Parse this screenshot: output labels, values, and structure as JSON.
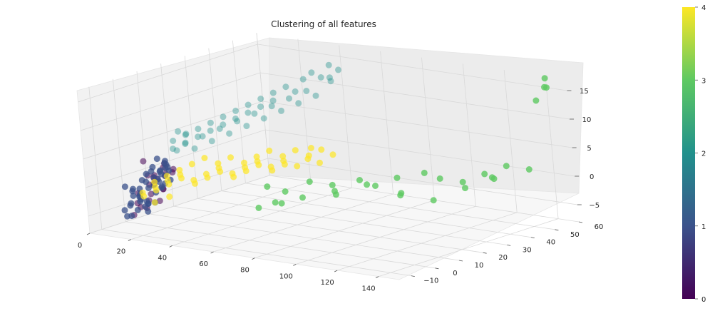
{
  "chart_data": {
    "type": "scatter",
    "projection": "3d",
    "title": "Clustering of all features",
    "xlabel": "",
    "ylabel": "",
    "zlabel": "",
    "xlim": [
      0,
      150
    ],
    "ylim": [
      -15,
      60
    ],
    "zlim": [
      -8,
      17
    ],
    "x_ticks": [
      "0",
      "20",
      "40",
      "60",
      "80",
      "100",
      "120",
      "140"
    ],
    "y_ticks": [
      "−10",
      "0",
      "10",
      "20",
      "30",
      "40",
      "50",
      "60"
    ],
    "z_ticks": [
      "−5",
      "0",
      "5",
      "10",
      "15"
    ],
    "grid": true,
    "colormap": "viridis",
    "colorbar": {
      "min": 0,
      "max": 4,
      "ticks": [
        "0",
        "1",
        "2",
        "3",
        "4"
      ]
    },
    "cluster_colors": [
      "#440154",
      "#3b528b",
      "#21918c",
      "#5ec962",
      "#fde725"
    ],
    "series": [
      {
        "cluster": 0,
        "points": [
          [
            2,
            5,
            -6
          ],
          [
            3,
            3,
            -5
          ],
          [
            4,
            8,
            -4
          ],
          [
            5,
            2,
            -3
          ],
          [
            6,
            6,
            -2
          ],
          [
            4,
            10,
            -1
          ],
          [
            8,
            4,
            0
          ],
          [
            7,
            7,
            -2
          ],
          [
            10,
            5,
            -1
          ],
          [
            12,
            3,
            0
          ],
          [
            9,
            9,
            -3
          ],
          [
            3,
            12,
            -2
          ],
          [
            11,
            8,
            1
          ],
          [
            14,
            6,
            0
          ],
          [
            6,
            13,
            -1
          ],
          [
            15,
            4,
            -2
          ],
          [
            13,
            10,
            0
          ],
          [
            2,
            2,
            -7
          ],
          [
            5,
            5,
            -6
          ],
          [
            8,
            8,
            -5
          ],
          [
            10,
            2,
            -4
          ],
          [
            7,
            12,
            1
          ],
          [
            16,
            8,
            1
          ],
          [
            4,
            6,
            2
          ]
        ]
      },
      {
        "cluster": 1,
        "points": [
          [
            0,
            0,
            -6
          ],
          [
            1,
            2,
            -5
          ],
          [
            0,
            4,
            -4
          ],
          [
            1,
            6,
            -3
          ],
          [
            2,
            8,
            -2
          ],
          [
            0,
            10,
            -1
          ],
          [
            1,
            12,
            0
          ],
          [
            2,
            14,
            -1
          ],
          [
            0,
            1,
            -2
          ],
          [
            1,
            3,
            -3
          ],
          [
            2,
            5,
            -4
          ],
          [
            0,
            7,
            -5
          ],
          [
            1,
            9,
            -6
          ],
          [
            2,
            11,
            -3
          ],
          [
            0,
            13,
            -2
          ],
          [
            1,
            15,
            -1
          ],
          [
            3,
            0,
            -5
          ],
          [
            3,
            4,
            -4
          ],
          [
            3,
            8,
            -3
          ],
          [
            3,
            12,
            -2
          ],
          [
            4,
            2,
            -6
          ],
          [
            4,
            6,
            -5
          ],
          [
            4,
            10,
            -4
          ],
          [
            4,
            14,
            -3
          ],
          [
            5,
            0,
            -2
          ],
          [
            5,
            4,
            -1
          ],
          [
            5,
            8,
            0
          ],
          [
            5,
            12,
            -1
          ],
          [
            6,
            2,
            -3
          ],
          [
            6,
            10,
            -2
          ],
          [
            2,
            16,
            -2
          ],
          [
            0,
            18,
            -1
          ],
          [
            1,
            0,
            -7
          ],
          [
            3,
            16,
            0
          ],
          [
            5,
            14,
            1
          ],
          [
            7,
            4,
            -5
          ],
          [
            8,
            0,
            -4
          ],
          [
            6,
            14,
            0
          ],
          [
            0,
            15,
            1
          ],
          [
            1,
            17,
            0
          ],
          [
            2,
            18,
            -3
          ],
          [
            4,
            16,
            -1
          ],
          [
            7,
            10,
            -3
          ],
          [
            8,
            6,
            -5
          ],
          [
            9,
            2,
            -6
          ],
          [
            0,
            16,
            -4
          ],
          [
            2,
            1,
            -7
          ],
          [
            3,
            6,
            -6
          ]
        ]
      },
      {
        "cluster": 2,
        "points": [
          [
            4,
            20,
            2
          ],
          [
            6,
            22,
            3
          ],
          [
            8,
            24,
            2
          ],
          [
            10,
            26,
            4
          ],
          [
            12,
            28,
            3
          ],
          [
            14,
            30,
            5
          ],
          [
            16,
            32,
            4
          ],
          [
            18,
            34,
            6
          ],
          [
            20,
            36,
            5
          ],
          [
            22,
            38,
            7
          ],
          [
            24,
            40,
            6
          ],
          [
            26,
            42,
            8
          ],
          [
            28,
            44,
            7
          ],
          [
            30,
            46,
            9
          ],
          [
            32,
            48,
            8
          ],
          [
            34,
            50,
            10
          ],
          [
            36,
            52,
            9
          ],
          [
            5,
            18,
            4
          ],
          [
            9,
            20,
            5
          ],
          [
            13,
            22,
            6
          ],
          [
            17,
            24,
            7
          ],
          [
            21,
            26,
            8
          ],
          [
            25,
            28,
            9
          ],
          [
            29,
            30,
            10
          ],
          [
            33,
            32,
            11
          ],
          [
            37,
            34,
            12
          ],
          [
            41,
            36,
            13
          ],
          [
            7,
            16,
            3
          ],
          [
            11,
            18,
            4
          ],
          [
            15,
            20,
            5
          ],
          [
            19,
            22,
            6
          ],
          [
            23,
            24,
            7
          ],
          [
            27,
            26,
            8
          ],
          [
            31,
            28,
            9
          ],
          [
            35,
            30,
            10
          ],
          [
            39,
            32,
            11
          ],
          [
            43,
            38,
            12
          ],
          [
            3,
            22,
            5
          ],
          [
            2,
            26,
            4
          ],
          [
            45,
            40,
            14
          ],
          [
            47,
            42,
            15
          ],
          [
            49,
            44,
            14
          ],
          [
            51,
            46,
            16
          ],
          [
            53,
            48,
            15
          ],
          [
            46,
            50,
            13
          ],
          [
            44,
            52,
            12
          ]
        ]
      },
      {
        "cluster": 3,
        "points": [
          [
            65,
            5,
            1
          ],
          [
            70,
            8,
            0
          ],
          [
            75,
            2,
            -1
          ],
          [
            80,
            10,
            2
          ],
          [
            85,
            15,
            1
          ],
          [
            90,
            12,
            0
          ],
          [
            95,
            18,
            2
          ],
          [
            100,
            20,
            1
          ],
          [
            105,
            25,
            2
          ],
          [
            110,
            22,
            0
          ],
          [
            115,
            28,
            3
          ],
          [
            120,
            30,
            2
          ],
          [
            125,
            35,
            1
          ],
          [
            130,
            40,
            2
          ],
          [
            135,
            45,
            3
          ],
          [
            140,
            50,
            2
          ],
          [
            72,
            -5,
            -1
          ],
          [
            78,
            -3,
            0
          ],
          [
            88,
            0,
            1
          ],
          [
            98,
            5,
            2
          ],
          [
            108,
            10,
            3
          ],
          [
            118,
            15,
            1
          ],
          [
            128,
            20,
            0
          ],
          [
            138,
            25,
            2
          ],
          [
            145,
            55,
            16
          ],
          [
            142,
            58,
            17
          ],
          [
            140,
            60,
            15
          ],
          [
            144,
            52,
            14
          ],
          [
            132,
            42,
            1
          ],
          [
            136,
            38,
            2
          ]
        ]
      },
      {
        "cluster": 4,
        "points": [
          [
            10,
            0,
            -3
          ],
          [
            14,
            2,
            -2
          ],
          [
            18,
            4,
            -1
          ],
          [
            22,
            6,
            0
          ],
          [
            26,
            8,
            -1
          ],
          [
            30,
            10,
            0
          ],
          [
            34,
            12,
            1
          ],
          [
            38,
            14,
            0
          ],
          [
            42,
            16,
            1
          ],
          [
            46,
            18,
            2
          ],
          [
            50,
            20,
            1
          ],
          [
            54,
            22,
            2
          ],
          [
            12,
            -2,
            -2
          ],
          [
            16,
            0,
            -1
          ],
          [
            20,
            2,
            0
          ],
          [
            24,
            4,
            1
          ],
          [
            28,
            6,
            0
          ],
          [
            32,
            8,
            1
          ],
          [
            36,
            10,
            2
          ],
          [
            40,
            12,
            1
          ],
          [
            44,
            14,
            2
          ],
          [
            48,
            16,
            3
          ],
          [
            52,
            18,
            2
          ],
          [
            56,
            20,
            3
          ],
          [
            60,
            22,
            2
          ],
          [
            11,
            4,
            -1
          ],
          [
            15,
            6,
            0
          ],
          [
            19,
            8,
            1
          ],
          [
            23,
            10,
            2
          ],
          [
            27,
            12,
            3
          ],
          [
            31,
            14,
            2
          ],
          [
            35,
            16,
            3
          ],
          [
            39,
            18,
            2
          ],
          [
            43,
            20,
            3
          ],
          [
            47,
            22,
            4
          ],
          [
            51,
            24,
            3
          ],
          [
            55,
            26,
            4
          ],
          [
            59,
            28,
            3
          ],
          [
            63,
            30,
            4
          ],
          [
            62,
            25,
            3
          ],
          [
            58,
            30,
            4
          ],
          [
            64,
            28,
            2
          ],
          [
            66,
            32,
            3
          ],
          [
            20,
            -4,
            -3
          ],
          [
            25,
            -2,
            -2
          ]
        ]
      }
    ]
  }
}
